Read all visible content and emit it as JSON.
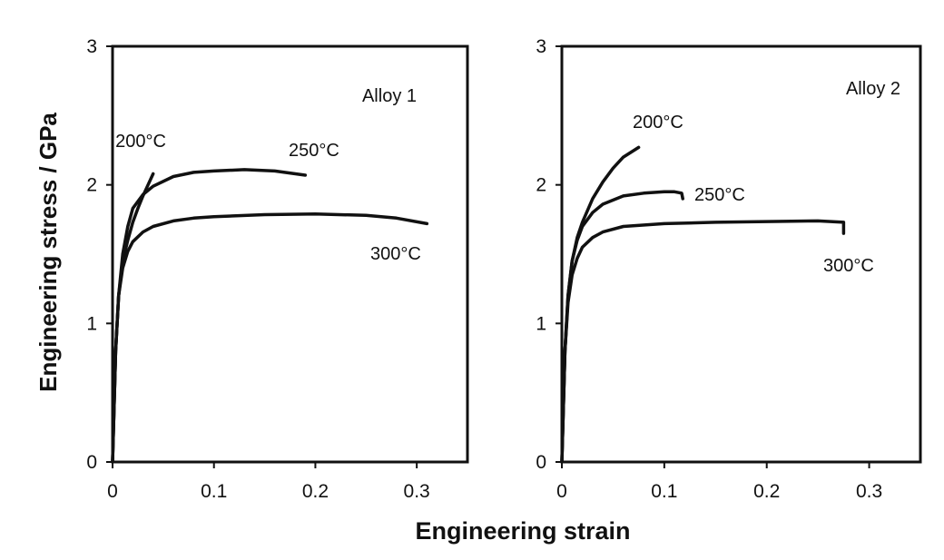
{
  "figure": {
    "xlabel": "Engineering strain",
    "ylabel": "Engineering stress / GPa"
  },
  "chart_data": [
    {
      "type": "line",
      "xlabel": "Engineering strain",
      "ylabel": "Engineering stress / GPa",
      "xlim": [
        0,
        0.35
      ],
      "ylim": [
        0,
        3
      ],
      "x_ticks": [
        "0",
        "0.1",
        "0.2",
        "0.3"
      ],
      "y_ticks": [
        "0",
        "1",
        "2",
        "3"
      ],
      "grid": false,
      "panel_label": "Alloy 1",
      "series": [
        {
          "name": "200°C",
          "label": "200",
          "unit": "°C",
          "x": [
            0,
            0.003,
            0.006,
            0.01,
            0.015,
            0.02,
            0.025,
            0.03,
            0.035,
            0.04
          ],
          "y": [
            0,
            0.8,
            1.2,
            1.45,
            1.6,
            1.73,
            1.83,
            1.92,
            2.0,
            2.08
          ]
        },
        {
          "name": "250°C",
          "label": "250",
          "unit": "°C",
          "x": [
            0,
            0.003,
            0.006,
            0.01,
            0.015,
            0.02,
            0.03,
            0.04,
            0.06,
            0.08,
            0.1,
            0.13,
            0.16,
            0.19
          ],
          "y": [
            0,
            0.8,
            1.2,
            1.5,
            1.7,
            1.83,
            1.93,
            1.99,
            2.06,
            2.09,
            2.1,
            2.11,
            2.1,
            2.07
          ]
        },
        {
          "name": "300°C",
          "label": "300",
          "unit": "°C",
          "x": [
            0,
            0.003,
            0.006,
            0.01,
            0.015,
            0.02,
            0.03,
            0.04,
            0.06,
            0.08,
            0.1,
            0.15,
            0.2,
            0.25,
            0.28,
            0.31
          ],
          "y": [
            0,
            0.8,
            1.2,
            1.4,
            1.52,
            1.59,
            1.66,
            1.7,
            1.74,
            1.76,
            1.77,
            1.785,
            1.79,
            1.78,
            1.76,
            1.72
          ]
        }
      ]
    },
    {
      "type": "line",
      "xlabel": "Engineering strain",
      "ylabel": "Engineering stress / GPa",
      "xlim": [
        0,
        0.35
      ],
      "ylim": [
        0,
        3
      ],
      "x_ticks": [
        "0",
        "0.1",
        "0.2",
        "0.3"
      ],
      "y_ticks": [
        "0",
        "1",
        "2",
        "3"
      ],
      "grid": false,
      "panel_label": "Alloy 2",
      "series": [
        {
          "name": "200°C",
          "label": "200",
          "unit": "°C",
          "x": [
            0,
            0.003,
            0.006,
            0.01,
            0.015,
            0.02,
            0.03,
            0.04,
            0.05,
            0.06,
            0.075
          ],
          "y": [
            0,
            0.8,
            1.2,
            1.45,
            1.62,
            1.73,
            1.9,
            2.02,
            2.12,
            2.2,
            2.27
          ]
        },
        {
          "name": "250°C",
          "label": "250",
          "unit": "°C",
          "x": [
            0,
            0.003,
            0.006,
            0.01,
            0.015,
            0.02,
            0.03,
            0.04,
            0.06,
            0.08,
            0.1,
            0.11,
            0.117,
            0.118
          ],
          "y": [
            0,
            0.8,
            1.2,
            1.45,
            1.6,
            1.7,
            1.8,
            1.86,
            1.92,
            1.94,
            1.95,
            1.95,
            1.94,
            1.9
          ]
        },
        {
          "name": "300°C",
          "label": "300",
          "unit": "°C",
          "x": [
            0,
            0.003,
            0.006,
            0.01,
            0.015,
            0.02,
            0.03,
            0.04,
            0.06,
            0.1,
            0.15,
            0.2,
            0.25,
            0.275,
            0.275
          ],
          "y": [
            0,
            0.8,
            1.15,
            1.35,
            1.47,
            1.55,
            1.62,
            1.66,
            1.7,
            1.72,
            1.73,
            1.735,
            1.74,
            1.73,
            1.65
          ]
        }
      ]
    }
  ]
}
